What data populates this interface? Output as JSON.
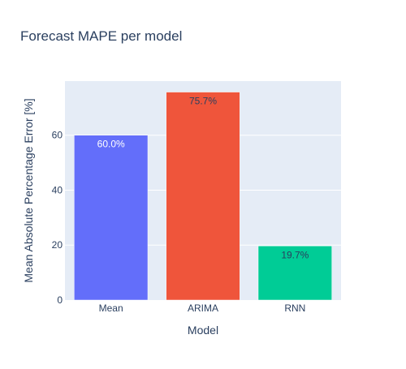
{
  "chart_data": {
    "type": "bar",
    "title": "Forecast MAPE per model",
    "xlabel": "Model",
    "ylabel": "Mean Absolute Percentage Error [%]",
    "categories": [
      "Mean",
      "ARIMA",
      "RNN"
    ],
    "values": [
      60.0,
      75.7,
      19.7
    ],
    "data_labels": [
      "60.0%",
      "75.7%",
      "19.7%"
    ],
    "bar_colors": [
      "#636efa",
      "#ef553b",
      "#00cc96"
    ],
    "label_colors": [
      "#ffffff",
      "#2a3f5f",
      "#2a3f5f"
    ],
    "ylim": [
      0,
      79.7
    ],
    "yticks": [
      0,
      20,
      40,
      60
    ],
    "ytick_labels": [
      "0",
      "20",
      "40",
      "60"
    ],
    "grid": true,
    "plot_background": "#e5ecf6",
    "text_color": "#2a3f5f"
  }
}
